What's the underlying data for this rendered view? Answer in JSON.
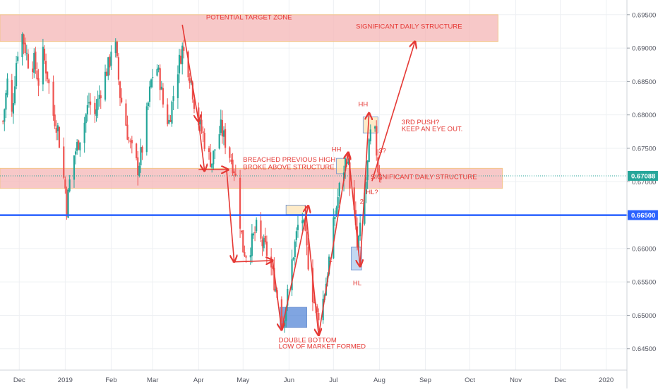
{
  "chart_data": {
    "type": "candlestick",
    "title": "",
    "xlabel": "",
    "ylabel": "",
    "ylim": [
      0.6418,
      0.6972
    ],
    "grid": true,
    "y_ticks": [
      "0.69500",
      "0.69000",
      "0.68500",
      "0.68000",
      "0.67500",
      "0.67000",
      "0.66500",
      "0.66000",
      "0.65500",
      "0.65000",
      "0.64500"
    ],
    "y_tick_values": [
      0.695,
      0.69,
      0.685,
      0.68,
      0.675,
      0.67,
      0.665,
      0.66,
      0.655,
      0.65,
      0.645
    ],
    "x_ticks": [
      "Dec",
      "2019",
      "Feb",
      "Mar",
      "Apr",
      "May",
      "Jun",
      "Jul",
      "Aug",
      "Sep",
      "Oct",
      "Nov",
      "Dec",
      "2020"
    ],
    "x_tick_dates": [
      "2018-12-01",
      "2019-01-01",
      "2019-02-01",
      "2019-03-01",
      "2019-04-01",
      "2019-05-01",
      "2019-06-01",
      "2019-07-01",
      "2019-08-01",
      "2019-09-01",
      "2019-10-01",
      "2019-11-01",
      "2019-12-01",
      "2020-01-01"
    ],
    "x_range": [
      "2018-11-18",
      "2020-01-15"
    ],
    "last_price": "0.67088",
    "last_price_value": 0.67088,
    "horizontal_line": {
      "label": "0.66500",
      "value": 0.665,
      "color": "#2962ff"
    },
    "price_path": [
      [
        "2018-11-20",
        0.679
      ],
      [
        "2018-11-23",
        0.685
      ],
      [
        "2018-11-26",
        0.68
      ],
      [
        "2018-11-29",
        0.688
      ],
      [
        "2018-12-02",
        0.693
      ],
      [
        "2018-12-05",
        0.69
      ],
      [
        "2018-12-08",
        0.687
      ],
      [
        "2018-12-11",
        0.688
      ],
      [
        "2018-12-14",
        0.685
      ],
      [
        "2018-12-17",
        0.689
      ],
      [
        "2018-12-20",
        0.686
      ],
      [
        "2018-12-24",
        0.68
      ],
      [
        "2018-12-27",
        0.678
      ],
      [
        "2018-12-30",
        0.672
      ],
      [
        "2019-01-01",
        0.669
      ],
      [
        "2019-01-02",
        0.666
      ],
      [
        "2019-01-04",
        0.67
      ],
      [
        "2019-01-07",
        0.674
      ],
      [
        "2019-01-10",
        0.676
      ],
      [
        "2019-01-14",
        0.679
      ],
      [
        "2019-01-17",
        0.682
      ],
      [
        "2019-01-21",
        0.68
      ],
      [
        "2019-01-24",
        0.683
      ],
      [
        "2019-01-28",
        0.686
      ],
      [
        "2019-01-31",
        0.688
      ],
      [
        "2019-02-02",
        0.692
      ],
      [
        "2019-02-04",
        0.69
      ],
      [
        "2019-02-07",
        0.683
      ],
      [
        "2019-02-10",
        0.68
      ],
      [
        "2019-02-13",
        0.676
      ],
      [
        "2019-02-16",
        0.674
      ],
      [
        "2019-02-19",
        0.672
      ],
      [
        "2019-02-22",
        0.675
      ],
      [
        "2019-02-25",
        0.68
      ],
      [
        "2019-02-28",
        0.685
      ],
      [
        "2019-03-03",
        0.688
      ],
      [
        "2019-03-06",
        0.685
      ],
      [
        "2019-03-09",
        0.68
      ],
      [
        "2019-03-12",
        0.679
      ],
      [
        "2019-03-15",
        0.683
      ],
      [
        "2019-03-18",
        0.687
      ],
      [
        "2019-03-21",
        0.69
      ],
      [
        "2019-03-24",
        0.688
      ],
      [
        "2019-03-27",
        0.685
      ],
      [
        "2019-03-29",
        0.682
      ],
      [
        "2019-04-01",
        0.679
      ],
      [
        "2019-04-04",
        0.677
      ],
      [
        "2019-04-07",
        0.674
      ],
      [
        "2019-04-10",
        0.673
      ],
      [
        "2019-04-13",
        0.676
      ],
      [
        "2019-04-16",
        0.678
      ],
      [
        "2019-04-19",
        0.676
      ],
      [
        "2019-04-22",
        0.674
      ],
      [
        "2019-04-25",
        0.672
      ],
      [
        "2019-04-27",
        0.669
      ],
      [
        "2019-04-29",
        0.664
      ],
      [
        "2019-05-01",
        0.66
      ],
      [
        "2019-05-04",
        0.659
      ],
      [
        "2019-05-07",
        0.661
      ],
      [
        "2019-05-10",
        0.663
      ],
      [
        "2019-05-13",
        0.661
      ],
      [
        "2019-05-16",
        0.66
      ],
      [
        "2019-05-19",
        0.658
      ],
      [
        "2019-05-22",
        0.655
      ],
      [
        "2019-05-25",
        0.652
      ],
      [
        "2019-05-28",
        0.649
      ],
      [
        "2019-05-31",
        0.653
      ],
      [
        "2019-06-03",
        0.658
      ],
      [
        "2019-06-06",
        0.662
      ],
      [
        "2019-06-09",
        0.666
      ],
      [
        "2019-06-11",
        0.663
      ],
      [
        "2019-06-14",
        0.658
      ],
      [
        "2019-06-17",
        0.653
      ],
      [
        "2019-06-20",
        0.65
      ],
      [
        "2019-06-23",
        0.651
      ],
      [
        "2019-06-26",
        0.655
      ],
      [
        "2019-06-29",
        0.66
      ],
      [
        "2019-07-02",
        0.665
      ],
      [
        "2019-07-05",
        0.669
      ],
      [
        "2019-07-08",
        0.672
      ],
      [
        "2019-07-10",
        0.674
      ],
      [
        "2019-07-12",
        0.67
      ],
      [
        "2019-07-15",
        0.665
      ],
      [
        "2019-07-17",
        0.66
      ],
      [
        "2019-07-20",
        0.664
      ],
      [
        "2019-07-23",
        0.67
      ],
      [
        "2019-07-25",
        0.675
      ],
      [
        "2019-07-27",
        0.679
      ],
      [
        "2019-07-29",
        0.677
      ],
      [
        "2019-07-31",
        0.672
      ],
      [
        "2019-08-02",
        0.671
      ]
    ],
    "zones": [
      {
        "label": "POTENTIAL TARGET ZONE / SIGNIFICANT DAILY STRUCTURE",
        "from": "2018-11-18",
        "to": "2019-10-20",
        "high": 0.695,
        "low": 0.691,
        "color": "#f4b6b6"
      },
      {
        "label": "SIGNIFICANT DAILY STRUCTURE",
        "from": "2018-11-18",
        "to": "2019-10-23",
        "high": 0.672,
        "low": 0.669,
        "color": "#f4b6b6"
      }
    ],
    "boxes": [
      {
        "from": "2019-05-26",
        "to": "2019-06-13",
        "high": 0.6512,
        "low": 0.6482,
        "color": "#4a7fd4"
      },
      {
        "from": "2019-07-13",
        "to": "2019-07-20",
        "high": 0.6602,
        "low": 0.6568,
        "color": "#a8c8ec"
      },
      {
        "from": "2019-05-30",
        "to": "2019-06-12",
        "high": 0.6665,
        "low": 0.6651,
        "color": "#fde3b0"
      },
      {
        "from": "2019-07-03",
        "to": "2019-07-09",
        "high": 0.6735,
        "low": 0.6712,
        "color": "#fde3b0"
      },
      {
        "from": "2019-07-21",
        "to": "2019-07-31",
        "high": 0.6797,
        "low": 0.6773,
        "color": "#fde3b0"
      }
    ],
    "arrows": [
      {
        "from": [
          "2019-03-21",
          0.6935
        ],
        "to": [
          "2019-04-01",
          0.679
        ]
      },
      {
        "from": [
          "2019-04-01",
          0.679
        ],
        "to": [
          "2019-04-05",
          0.6716
        ]
      },
      {
        "from": [
          "2019-04-01",
          0.6718
        ],
        "to": [
          "2019-04-21",
          0.6718
        ]
      },
      {
        "from": [
          "2019-04-20",
          0.6715
        ],
        "to": [
          "2019-04-25",
          0.658
        ]
      },
      {
        "from": [
          "2019-04-24",
          0.658
        ],
        "to": [
          "2019-05-21",
          0.6582
        ]
      },
      {
        "from": [
          "2019-05-21",
          0.6582
        ],
        "to": [
          "2019-05-27",
          0.6478
        ]
      },
      {
        "from": [
          "2019-05-27",
          0.6478
        ],
        "to": [
          "2019-06-14",
          0.6664
        ]
      },
      {
        "from": [
          "2019-06-12",
          0.6664
        ],
        "to": [
          "2019-06-21",
          0.647
        ]
      },
      {
        "from": [
          "2019-06-21",
          0.647
        ],
        "to": [
          "2019-07-11",
          0.6744
        ]
      },
      {
        "from": [
          "2019-07-11",
          0.6744
        ],
        "to": [
          "2019-07-19",
          0.6573
        ]
      },
      {
        "from": [
          "2019-07-19",
          0.6573
        ],
        "to": [
          "2019-07-25",
          0.6803
        ]
      },
      {
        "from": [
          "2019-07-27",
          0.6701
        ],
        "to": [
          "2019-08-25",
          0.691
        ]
      }
    ],
    "annotations": [
      {
        "text": "POTENTIAL TARGET ZONE",
        "x": "2019-05-05",
        "y": 0.6943,
        "color": "#e53935",
        "anchor": "middle"
      },
      {
        "text": "SIGNIFICANT DAILY STRUCTURE",
        "x": "2019-08-21",
        "y": 0.6929,
        "color": "#e53935",
        "anchor": "middle"
      },
      {
        "text": "SIGNIFICANT DAILY STRUCTURE",
        "x": "2019-08-31",
        "y": 0.6704,
        "color": "#e53935",
        "anchor": "middle"
      },
      {
        "text": "BREACHED PREVIOUS HIGH",
        "x": "2019-05-01",
        "y": 0.673,
        "color": "#e53935",
        "anchor": "start"
      },
      {
        "text": "BROKE ABOVE STRUCTURE",
        "x": "2019-05-01",
        "y": 0.6719,
        "color": "#e53935",
        "anchor": "start"
      },
      {
        "text": "HH",
        "x": "2019-07-21",
        "y": 0.6813,
        "color": "#e53935",
        "anchor": "middle"
      },
      {
        "text": "HH",
        "x": "2019-07-03",
        "y": 0.6745,
        "color": "#e53935",
        "anchor": "middle"
      },
      {
        "text": "3RD PUSH?",
        "x": "2019-08-16",
        "y": 0.6786,
        "color": "#e53935",
        "anchor": "start"
      },
      {
        "text": "KEEP AN EYE OUT.",
        "x": "2019-08-16",
        "y": 0.6776,
        "color": "#e53935",
        "anchor": "start"
      },
      {
        "text": "3?",
        "x": "2019-08-03",
        "y": 0.6743,
        "color": "#e53935",
        "anchor": "middle"
      },
      {
        "text": "HL?",
        "x": "2019-07-27",
        "y": 0.6681,
        "color": "#e53935",
        "anchor": "middle"
      },
      {
        "text": "2",
        "x": "2019-07-20",
        "y": 0.6667,
        "color": "#e53935",
        "anchor": "middle"
      },
      {
        "text": "1",
        "x": "2019-06-29",
        "y": 0.658,
        "color": "#e53935",
        "anchor": "middle"
      },
      {
        "text": "HL",
        "x": "2019-07-17",
        "y": 0.6545,
        "color": "#e53935",
        "anchor": "middle"
      },
      {
        "text": "DOUBLE BOTTOM",
        "x": "2019-05-25",
        "y": 0.646,
        "color": "#e53935",
        "anchor": "start"
      },
      {
        "text": "LOW OF MARKET FORMED",
        "x": "2019-05-25",
        "y": 0.645,
        "color": "#e53935",
        "anchor": "start"
      }
    ],
    "up_color": "#26a69a",
    "down_color": "#ef5350",
    "line_color": "#2962ff"
  }
}
